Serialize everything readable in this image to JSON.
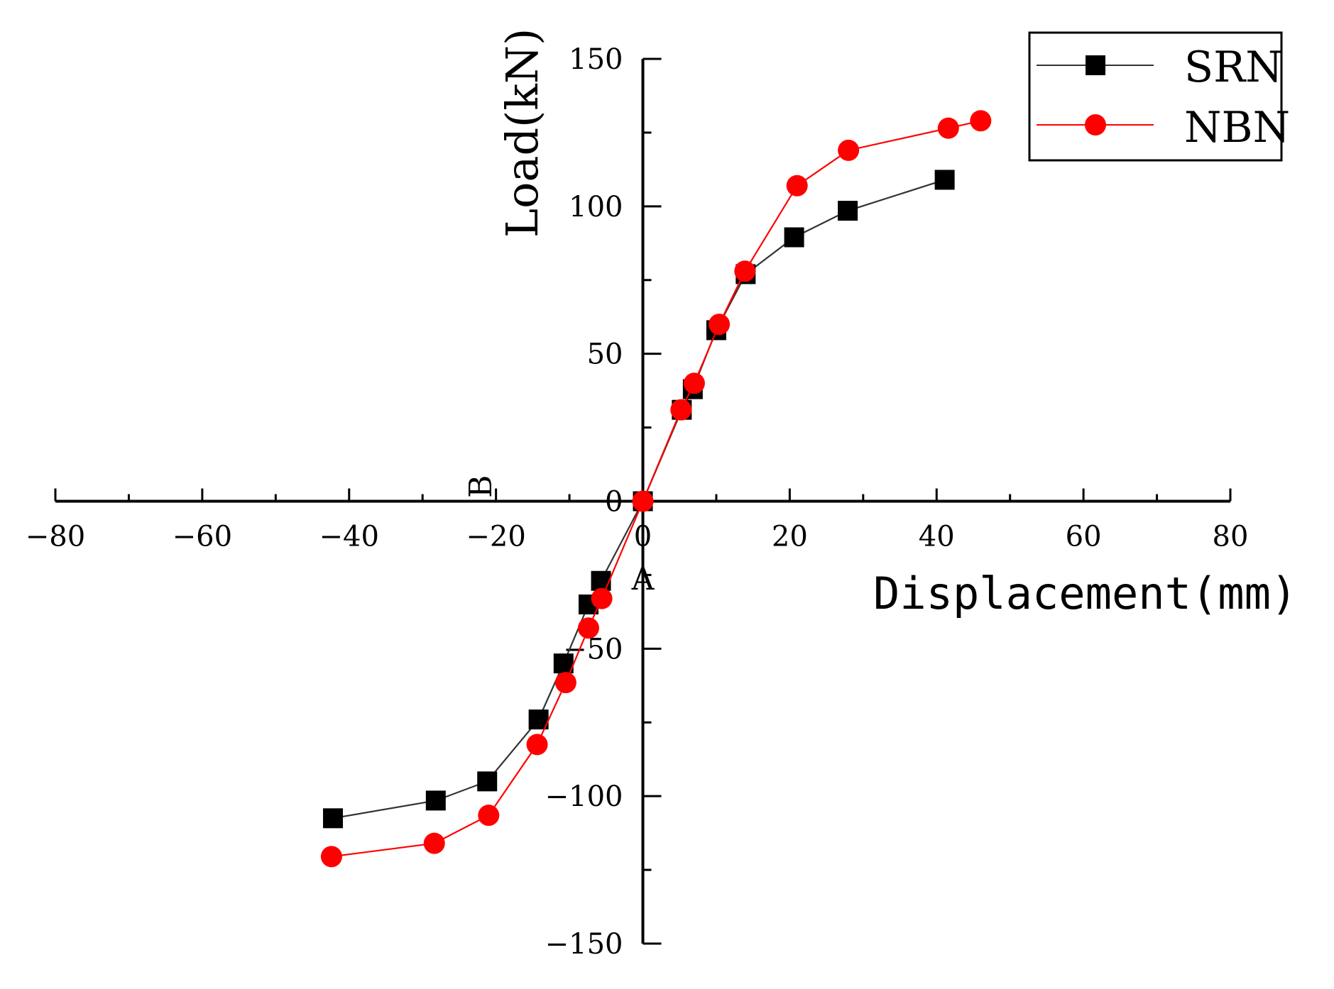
{
  "chart_data": {
    "type": "line",
    "title": "",
    "xlabel": "Displacement(mm)",
    "ylabel": "Load(kN)",
    "xlim": [
      -80,
      80
    ],
    "ylim": [
      -150,
      150
    ],
    "x_ticks": [
      -80,
      -60,
      -40,
      -20,
      0,
      20,
      40,
      60,
      80
    ],
    "y_ticks": [
      -150,
      -100,
      -50,
      0,
      50,
      100,
      150
    ],
    "x_tick_labels": [
      "−80",
      "−60",
      "−40",
      "−20",
      "0",
      "20",
      "40",
      "60",
      "80"
    ],
    "y_tick_labels": [
      "−150",
      "−100",
      "−50",
      "0",
      "50",
      "100",
      "150"
    ],
    "grid": false,
    "legend_position": "top-right",
    "annotations": [
      {
        "text": "B",
        "x": -22,
        "y": 5
      },
      {
        "text": "A",
        "x": 0,
        "y": -30
      }
    ],
    "series": [
      {
        "name": "SRN",
        "color": "#000000",
        "line_color": "#333333",
        "marker": "square",
        "x": [
          -42.2,
          -28.2,
          -21.2,
          -14.2,
          -10.8,
          -7.4,
          -5.7,
          0,
          5.3,
          6.8,
          10,
          14,
          20.6,
          27.9,
          41.1
        ],
        "y": [
          -107.5,
          -101.5,
          -95,
          -74,
          -55,
          -35,
          -27,
          0,
          31,
          38,
          58,
          77,
          89.5,
          98.5,
          109
        ]
      },
      {
        "name": "NBN",
        "color": "#FF0000",
        "line_color": "#FF0000",
        "marker": "circle",
        "x": [
          -42.4,
          -28.4,
          -21,
          -14.4,
          -10.5,
          -7.4,
          -5.6,
          0,
          5.2,
          7,
          10.4,
          13.9,
          21,
          28,
          41.6,
          46
        ],
        "y": [
          -120.5,
          -116,
          -106.5,
          -82.5,
          -61.5,
          -43,
          -33,
          0,
          31,
          40,
          60,
          78,
          107,
          119,
          126.5,
          129
        ]
      }
    ]
  }
}
